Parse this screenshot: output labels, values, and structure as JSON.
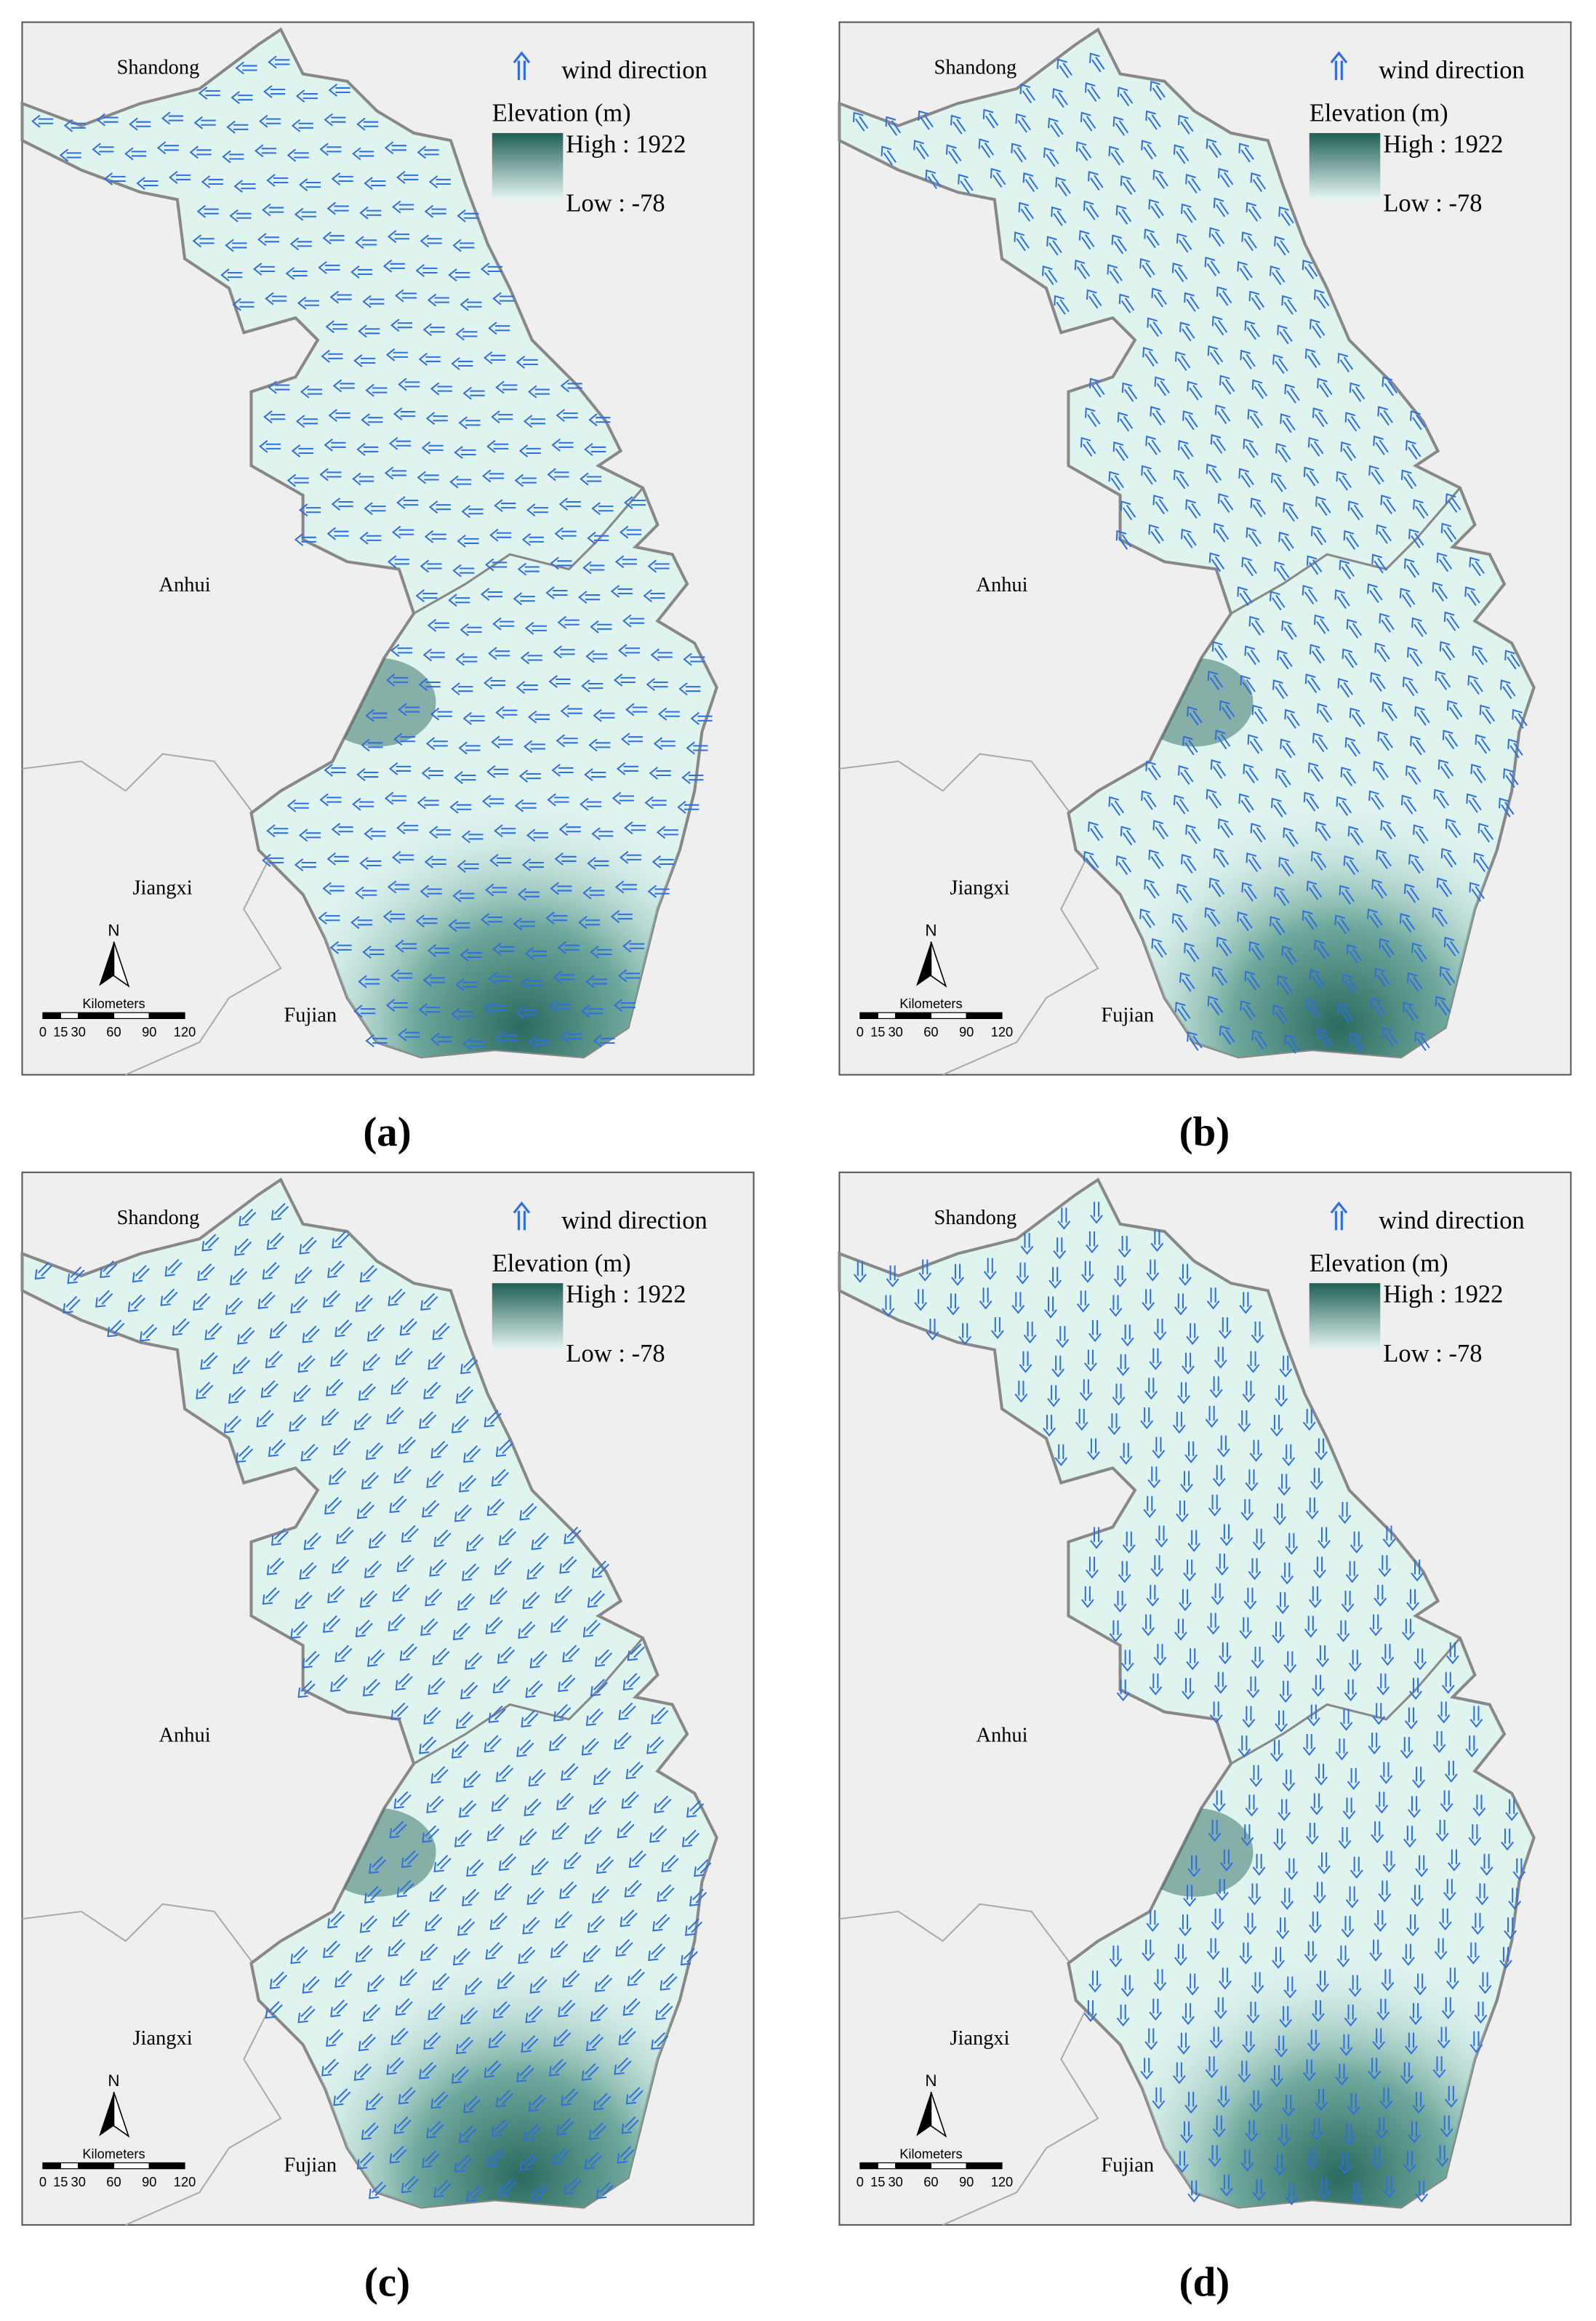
{
  "panels": [
    {
      "caption": "(a)",
      "provinces": [
        "Shandong",
        "Anhui",
        "Jiangxi",
        "Fujian"
      ],
      "legend": {
        "wind": "wind direction",
        "elevation_title": "Elevation (m)",
        "high": "High : 1922",
        "low": "Low : -78"
      },
      "north": "N",
      "scale": {
        "unit": "Kilometers",
        "ticks": [
          0,
          15,
          30,
          60,
          90,
          120
        ]
      }
    },
    {
      "caption": "(b)",
      "provinces": [
        "Shandong",
        "Anhui",
        "Jiangxi",
        "Fujian"
      ],
      "legend": {
        "wind": "wind direction",
        "elevation_title": "Elevation (m)",
        "high": "High : 1922",
        "low": "Low : -78"
      },
      "north": "N",
      "scale": {
        "unit": "Kilometers",
        "ticks": [
          0,
          15,
          30,
          60,
          90,
          120
        ]
      }
    },
    {
      "caption": "(c)",
      "provinces": [
        "Shandong",
        "Anhui",
        "Jiangxi",
        "Fujian"
      ],
      "legend": {
        "wind": "wind direction",
        "elevation_title": "Elevation (m)",
        "high": "High : 1922",
        "low": "Low : -78"
      },
      "north": "N",
      "scale": {
        "unit": "Kilometers",
        "ticks": [
          0,
          15,
          30,
          60,
          90,
          120
        ]
      }
    },
    {
      "caption": "(d)",
      "provinces": [
        "Shandong",
        "Anhui",
        "Jiangxi",
        "Fujian"
      ],
      "legend": {
        "wind": "wind direction",
        "elevation_title": "Elevation (m)",
        "high": "High : 1922",
        "low": "Low : -78"
      },
      "north": "N",
      "scale": {
        "unit": "Kilometers",
        "ticks": [
          0,
          15,
          30,
          60,
          90,
          120
        ]
      }
    }
  ]
}
